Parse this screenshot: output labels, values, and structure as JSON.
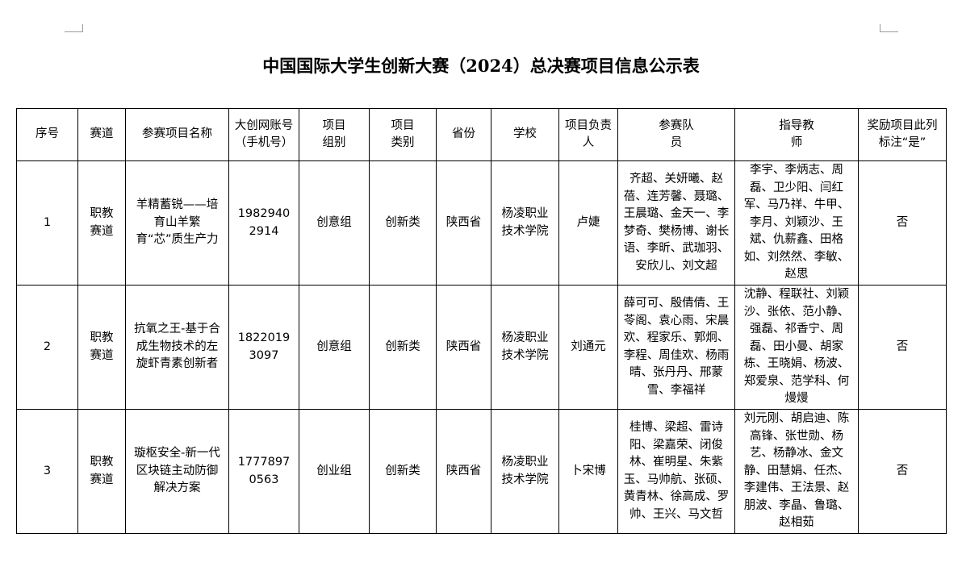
{
  "title": "中国国际大学生创新大赛（2024）总决赛项目信息公示表",
  "headers": [
    "序号",
    "赛道",
    "参赛项目名称",
    "大创网账号（手机号）",
    "项目组别",
    "项目类别",
    "省份",
    "学校",
    "项目负责人",
    "参赛队员",
    "指导教师",
    "奖励项目此列标注“是”"
  ],
  "rows": [
    {
      "no": "1",
      "track": "职教赛道",
      "project": "羊精蓄锐——培育山羊繁育“芯”质生产力",
      "account": "19829402914",
      "group": "创意组",
      "category": "创新类",
      "province": "陕西省",
      "school": "杨凌职业技术学院",
      "leader": "卢婕",
      "members": "齐超、关妍曦、赵蓓、连芳馨、聂璐、王晨璐、金天一、李梦奇、樊杨博、谢长语、李昕、武珈羽、安欣儿、刘文超",
      "teachers": "李宇、李炳志、周磊、卫少阳、闫红军、马乃祥、牛甲、李月、刘颖沙、王斌、仇薪鑫、田格如、刘然然、李敏、赵思",
      "award": "否"
    },
    {
      "no": "2",
      "track": "职教赛道",
      "project": "抗氧之王-基于合成生物技术的左旋虾青素创新者",
      "account": "18220193097",
      "group": "创意组",
      "category": "创新类",
      "province": "陕西省",
      "school": "杨凌职业技术学院",
      "leader": "刘通元",
      "members": "薛可可、殷倩倩、王苓阁、袁心雨、宋晨欢、程家乐、郭炯、李程、周佳欢、杨雨晴、张丹丹、邢蒙雪、李福祥",
      "teachers": "沈静、程联社、刘颖沙、张依、范小静、强磊、祁香宁、周磊、田小曼、胡家栋、王晓娟、杨波、郑爱泉、范学科、何熳熳",
      "award": "否"
    },
    {
      "no": "3",
      "track": "职教赛道",
      "project": "璇枢安全-新一代区块链主动防御解决方案",
      "account": "17778970563",
      "group": "创业组",
      "category": "创新类",
      "province": "陕西省",
      "school": "杨凌职业技术学院",
      "leader": "卜宋博",
      "members": "桂博、梁超、雷诗阳、梁嘉荣、闭俊林、崔明星、朱紫玉、马帅航、张硕、黄青林、徐高成、罗帅、王兴、马文哲",
      "teachers": "刘元刚、胡启迪、陈高锋、张世勋、杨艺、杨静冰、金文静、田慧娟、任杰、李建伟、王法景、赵朋波、李晶、鲁璐、赵相茹",
      "award": "否"
    }
  ]
}
